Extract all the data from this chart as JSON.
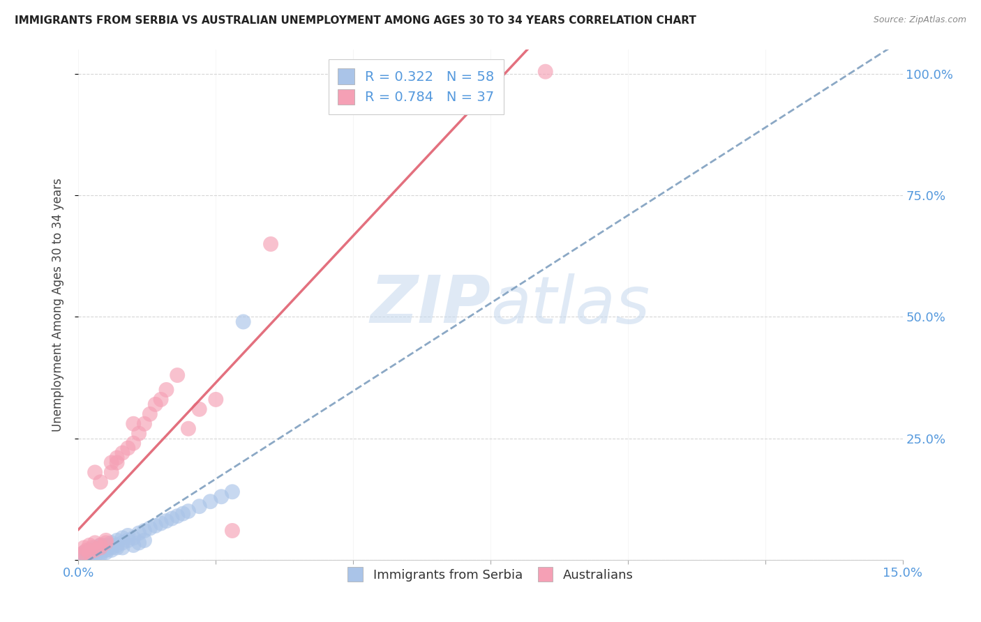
{
  "title": "IMMIGRANTS FROM SERBIA VS AUSTRALIAN UNEMPLOYMENT AMONG AGES 30 TO 34 YEARS CORRELATION CHART",
  "source": "Source: ZipAtlas.com",
  "ylabel": "Unemployment Among Ages 30 to 34 years",
  "xlim": [
    0.0,
    0.15
  ],
  "ylim": [
    0.0,
    1.05
  ],
  "serbia_color": "#aac4e8",
  "australia_color": "#f5a0b5",
  "serbia_R": 0.322,
  "serbia_N": 58,
  "australia_R": 0.784,
  "australia_N": 37,
  "serbia_line_color": "#7799bb",
  "serbia_line_style": "--",
  "australia_line_color": "#e06070",
  "australia_line_style": "-",
  "watermark_zip": "ZIP",
  "watermark_atlas": "atlas",
  "legend_labels": [
    "Immigrants from Serbia",
    "Australians"
  ],
  "serbia_x": [
    0.0005,
    0.001,
    0.001,
    0.001,
    0.0015,
    0.0015,
    0.002,
    0.002,
    0.002,
    0.002,
    0.0025,
    0.0025,
    0.003,
    0.003,
    0.003,
    0.003,
    0.0035,
    0.0035,
    0.004,
    0.004,
    0.004,
    0.004,
    0.004,
    0.005,
    0.005,
    0.005,
    0.005,
    0.006,
    0.006,
    0.006,
    0.006,
    0.007,
    0.007,
    0.007,
    0.008,
    0.008,
    0.008,
    0.009,
    0.009,
    0.01,
    0.01,
    0.011,
    0.011,
    0.012,
    0.012,
    0.013,
    0.014,
    0.015,
    0.016,
    0.017,
    0.018,
    0.019,
    0.02,
    0.022,
    0.024,
    0.026,
    0.028,
    0.03
  ],
  "serbia_y": [
    0.005,
    0.01,
    0.005,
    0.015,
    0.008,
    0.012,
    0.01,
    0.015,
    0.005,
    0.02,
    0.012,
    0.018,
    0.015,
    0.008,
    0.02,
    0.025,
    0.018,
    0.022,
    0.015,
    0.02,
    0.025,
    0.01,
    0.03,
    0.02,
    0.025,
    0.03,
    0.015,
    0.025,
    0.03,
    0.035,
    0.02,
    0.03,
    0.04,
    0.025,
    0.035,
    0.045,
    0.025,
    0.04,
    0.05,
    0.045,
    0.03,
    0.055,
    0.035,
    0.06,
    0.04,
    0.065,
    0.07,
    0.075,
    0.08,
    0.085,
    0.09,
    0.095,
    0.1,
    0.11,
    0.12,
    0.13,
    0.14,
    0.49
  ],
  "australia_x": [
    0.0005,
    0.001,
    0.001,
    0.0015,
    0.002,
    0.002,
    0.0025,
    0.003,
    0.003,
    0.003,
    0.004,
    0.004,
    0.004,
    0.005,
    0.005,
    0.006,
    0.006,
    0.007,
    0.007,
    0.008,
    0.009,
    0.01,
    0.01,
    0.011,
    0.012,
    0.013,
    0.014,
    0.015,
    0.016,
    0.018,
    0.02,
    0.022,
    0.025,
    0.028,
    0.035,
    0.075,
    0.085
  ],
  "australia_y": [
    0.01,
    0.015,
    0.025,
    0.02,
    0.015,
    0.03,
    0.025,
    0.02,
    0.035,
    0.18,
    0.025,
    0.03,
    0.16,
    0.035,
    0.04,
    0.18,
    0.2,
    0.2,
    0.21,
    0.22,
    0.23,
    0.24,
    0.28,
    0.26,
    0.28,
    0.3,
    0.32,
    0.33,
    0.35,
    0.38,
    0.27,
    0.31,
    0.33,
    0.06,
    0.65,
    1.005,
    1.005
  ]
}
